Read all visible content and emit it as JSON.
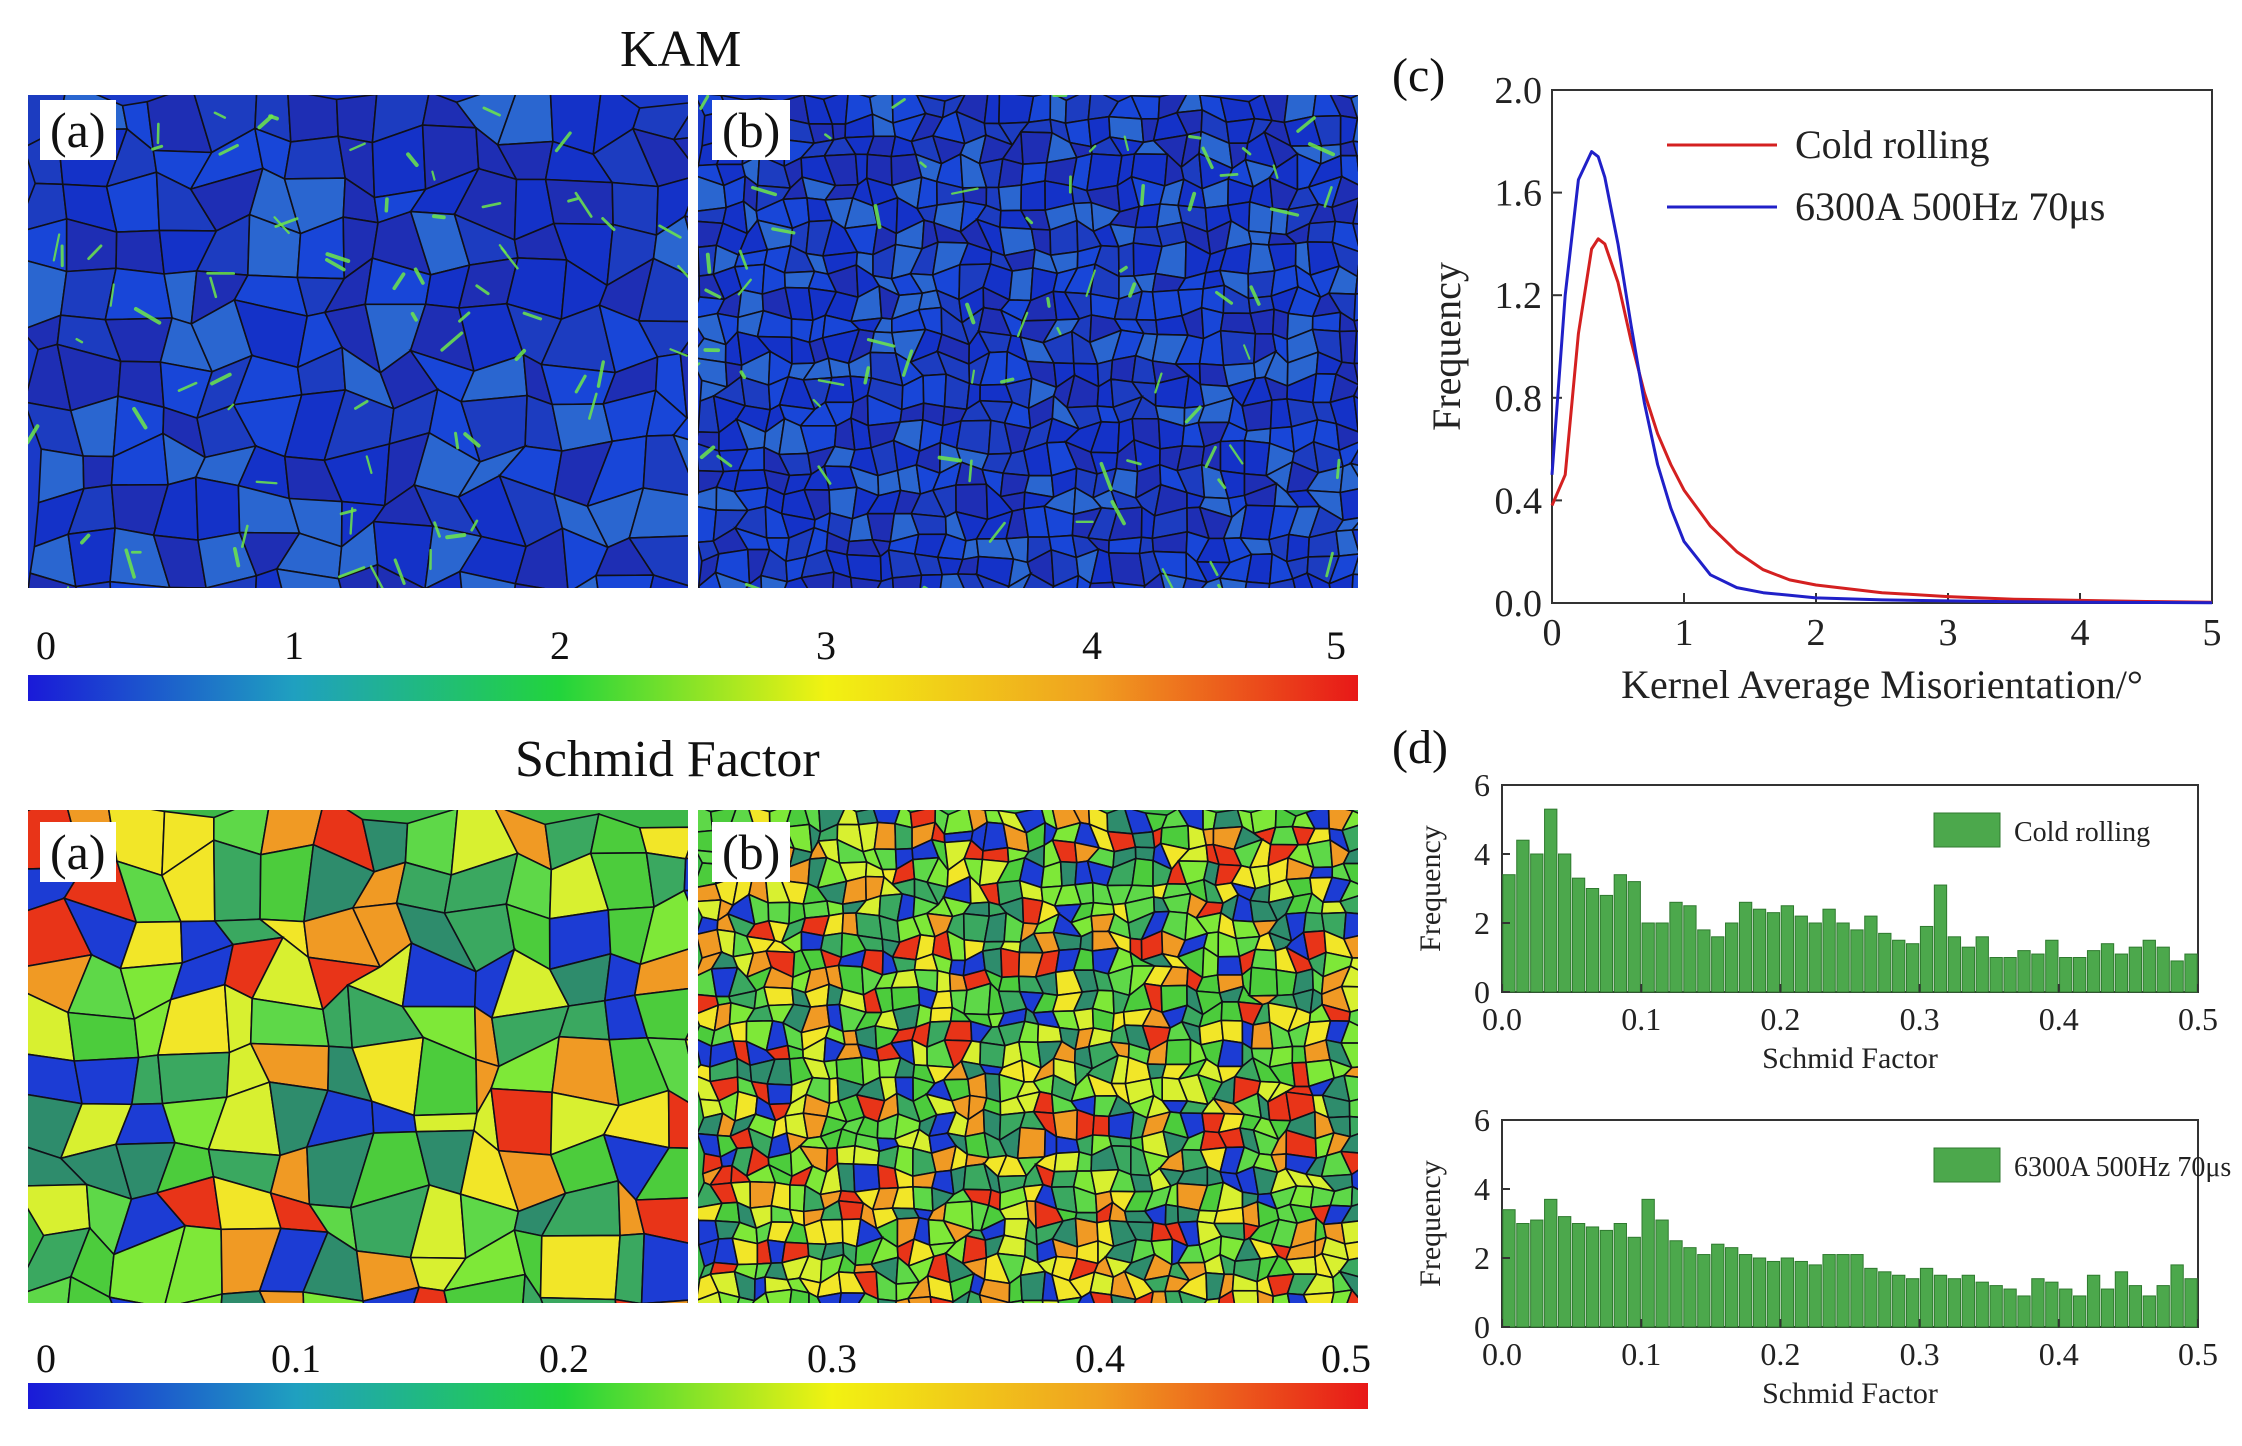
{
  "kam_section": {
    "title": "KAM",
    "panel_a": "(a)",
    "panel_b": "(b)",
    "colorbar": {
      "ticks": [
        "0",
        "1",
        "2",
        "3",
        "4",
        "5"
      ],
      "tick_values": [
        0,
        1,
        2,
        3,
        4,
        5
      ],
      "range": [
        0,
        5
      ],
      "colors": [
        "#1a1ad8",
        "#1fa0c0",
        "#22d43c",
        "#f2f212",
        "#f0a020",
        "#e81818"
      ]
    },
    "map_palette": [
      "#1432c8",
      "#1846d8",
      "#1c3cc0",
      "#2a66d0",
      "#1e2eb4"
    ],
    "highlight_color": "#6ee84a"
  },
  "schmid_section": {
    "title": "Schmid Factor",
    "panel_a": "(a)",
    "panel_b": "(b)",
    "colorbar": {
      "ticks": [
        "0",
        "0.1",
        "0.2",
        "0.3",
        "0.4",
        "0.5"
      ],
      "tick_values": [
        0,
        0.1,
        0.2,
        0.3,
        0.4,
        0.5
      ],
      "range": [
        0,
        0.5
      ],
      "colors": [
        "#1a1ad8",
        "#1fa0c0",
        "#22d43c",
        "#f2f212",
        "#f0a020",
        "#e81818"
      ]
    },
    "map_palette": [
      "#1c3cd4",
      "#2e8c6c",
      "#4ccc3c",
      "#7ee838",
      "#d8f030",
      "#f2e628",
      "#f09a24",
      "#e83418",
      "#3aa860",
      "#5ed848"
    ]
  },
  "chart_data": [
    {
      "id": "c",
      "panel": "(c)",
      "type": "line",
      "xlabel": "Kernel Average Misorientation/°",
      "ylabel": "Frequency",
      "xlim": [
        0,
        5
      ],
      "ylim": [
        0,
        2.0
      ],
      "xticks": [
        "0",
        "1",
        "2",
        "3",
        "4",
        "5"
      ],
      "yticks": [
        "0.0",
        "0.4",
        "0.8",
        "1.2",
        "1.6",
        "2.0"
      ],
      "series": [
        {
          "name": "Cold rolling",
          "color": "#d42020",
          "x": [
            0.0,
            0.1,
            0.2,
            0.3,
            0.35,
            0.4,
            0.5,
            0.6,
            0.7,
            0.8,
            0.9,
            1.0,
            1.2,
            1.4,
            1.6,
            1.8,
            2.0,
            2.5,
            3.0,
            3.5,
            4.0,
            4.5,
            5.0
          ],
          "y": [
            0.38,
            0.5,
            1.05,
            1.38,
            1.42,
            1.4,
            1.25,
            1.02,
            0.82,
            0.66,
            0.54,
            0.44,
            0.3,
            0.2,
            0.13,
            0.09,
            0.07,
            0.04,
            0.025,
            0.015,
            0.01,
            0.006,
            0.003
          ]
        },
        {
          "name": "6300A 500Hz 70μs",
          "color": "#2020c8",
          "x": [
            0.0,
            0.1,
            0.2,
            0.3,
            0.35,
            0.4,
            0.5,
            0.6,
            0.7,
            0.8,
            0.9,
            1.0,
            1.2,
            1.4,
            1.6,
            1.8,
            2.0,
            2.5,
            3.0,
            3.5,
            4.0,
            4.5,
            5.0
          ],
          "y": [
            0.5,
            1.2,
            1.65,
            1.76,
            1.74,
            1.66,
            1.4,
            1.08,
            0.78,
            0.54,
            0.37,
            0.24,
            0.11,
            0.06,
            0.04,
            0.03,
            0.02,
            0.012,
            0.008,
            0.005,
            0.003,
            0.002,
            0.001
          ]
        }
      ]
    },
    {
      "id": "d1",
      "panel": "(d)",
      "type": "bar",
      "legend": "Cold rolling",
      "color": "#4ca84c",
      "xlabel": "Schmid Factor",
      "ylabel": "Frequency",
      "xlim": [
        0,
        0.5
      ],
      "ylim": [
        0,
        6
      ],
      "xticks": [
        "0.0",
        "0.1",
        "0.2",
        "0.3",
        "0.4",
        "0.5"
      ],
      "yticks": [
        "0",
        "2",
        "4",
        "6"
      ],
      "bin_width": 0.01,
      "values": [
        3.4,
        4.4,
        4.0,
        5.3,
        4.0,
        3.3,
        3.0,
        2.8,
        3.4,
        3.2,
        2.0,
        2.0,
        2.6,
        2.5,
        1.8,
        1.6,
        2.0,
        2.6,
        2.4,
        2.3,
        2.5,
        2.2,
        2.0,
        2.4,
        2.0,
        1.8,
        2.2,
        1.7,
        1.5,
        1.4,
        1.9,
        3.1,
        1.6,
        1.3,
        1.6,
        1.0,
        1.0,
        1.2,
        1.1,
        1.5,
        1.0,
        1.0,
        1.2,
        1.4,
        1.1,
        1.3,
        1.5,
        1.3,
        0.9,
        1.1
      ]
    },
    {
      "id": "d2",
      "type": "bar",
      "legend": "6300A 500Hz 70μs",
      "color": "#4ca84c",
      "xlabel": "Schmid Factor",
      "ylabel": "Frequency",
      "xlim": [
        0,
        0.5
      ],
      "ylim": [
        0,
        6
      ],
      "xticks": [
        "0.0",
        "0.1",
        "0.2",
        "0.3",
        "0.4",
        "0.5"
      ],
      "yticks": [
        "0",
        "2",
        "4",
        "6"
      ],
      "bin_width": 0.01,
      "values": [
        3.4,
        3.0,
        3.1,
        3.7,
        3.2,
        3.0,
        2.9,
        2.8,
        3.0,
        2.6,
        3.7,
        3.1,
        2.5,
        2.3,
        2.1,
        2.4,
        2.3,
        2.1,
        2.0,
        1.9,
        2.0,
        1.9,
        1.8,
        2.1,
        2.1,
        2.1,
        1.7,
        1.6,
        1.5,
        1.4,
        1.7,
        1.5,
        1.4,
        1.5,
        1.3,
        1.2,
        1.1,
        0.9,
        1.4,
        1.3,
        1.1,
        0.9,
        1.5,
        1.1,
        1.6,
        1.2,
        0.9,
        1.2,
        1.8,
        1.4
      ]
    }
  ]
}
